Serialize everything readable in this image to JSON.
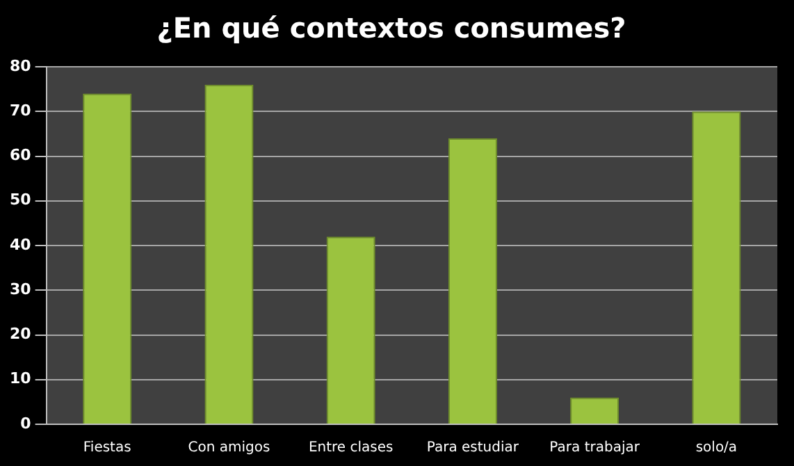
{
  "chart_data": {
    "type": "bar",
    "title": "¿En qué contextos consumes?",
    "categories": [
      "Fiestas",
      "Con amigos",
      "Entre clases",
      "Para estudiar",
      "Para trabajar",
      "solo/a"
    ],
    "values": [
      74,
      76,
      42,
      64,
      6,
      70
    ],
    "color": "#9bc33f",
    "ylim": [
      0,
      80
    ],
    "yticks": [
      0,
      10,
      20,
      30,
      40,
      50,
      60,
      70,
      80
    ],
    "grid": "y",
    "legend": false
  }
}
